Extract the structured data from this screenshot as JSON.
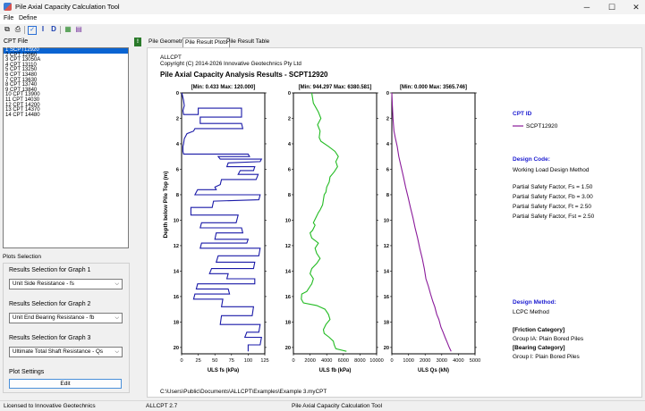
{
  "window": {
    "title": "Pile Axial Capacity Calculation Tool",
    "minimize": "─",
    "maximize": "☐",
    "close": "✕"
  },
  "menu": [
    "File",
    "Define"
  ],
  "toolbar_icons": [
    "copy-icon",
    "print-icon",
    "check-icon",
    "info-icon",
    "d-icon",
    "table-icon",
    "report-icon"
  ],
  "left": {
    "cpt_file_label": "CPT File",
    "cpt_list": [
      "1   SCPT12920",
      "2   CPT 12960",
      "3   CPT 13050A",
      "4   CPT 13110",
      "5   CPT 13250",
      "6   CPT 13480",
      "7   CPT 13630",
      "8   CPT 13740",
      "9   CPT 13840",
      "10  CPT 13900",
      "11  CPT 14030",
      "12  CPT 14200",
      "13  CPT 14370",
      "14  CPT 14480"
    ],
    "selected_index": 0,
    "plots_tab": "Plots Selection",
    "graph1_label": "Results Selection for Graph 1",
    "graph1_value": "Unit Side Resistance - fs",
    "graph2_label": "Results Selection for Graph 2",
    "graph2_value": "Unit End Bearing Resistance - fb",
    "graph3_label": "Results Selection for Graph 3",
    "graph3_value": "Ultimate Total Shaft Resistance - Qs",
    "settings_label": "Plot Settings",
    "edit_button": "Edit"
  },
  "tabs": [
    "Pile Geometry",
    "Pile Result Plots",
    "Pile Result Table"
  ],
  "active_tab": 1,
  "plot": {
    "header1": "ALLCPT",
    "header2": "Copyright (C) 2014-2026 Innovative Geotechnics Pty Ltd",
    "title": "Pile Axial Capacity Analysis Results - SCPT12920",
    "ylabel": "Depth below Pile Top (m)",
    "footer_path": "C:\\Users\\Public\\Documents\\ALLCPT\\Examples\\Example 3.myCPT",
    "legend_title": "CPT ID",
    "legend_entry": "SCPT12920",
    "design_code_title": "Design Code:",
    "design_code_value": "Working Load Design Method",
    "factors": [
      "Partial Safety Factor, Fs = 1.50",
      "Partial Safety Factor, Fb = 3.00",
      "Partial Safety Factor, Ft = 2.50",
      "Partial Safety Factor, Fst = 2.50"
    ],
    "design_method_title": "Design Method:",
    "design_method_value": "LCPC Method",
    "friction_cat_title": "[Friction Category]",
    "friction_cat_value": "Group IA: Plain Bored Piles",
    "bearing_cat_title": "[Bearing Category]",
    "bearing_cat_value": "Group I: Plain Bored Piles"
  },
  "chart_data": [
    {
      "type": "line",
      "title": "[Min: 0.433  Max: 120.000]",
      "xlabel": "ULS fs (kPa)",
      "xlim": [
        0,
        125
      ],
      "xticks": [
        0,
        25,
        50,
        75,
        100,
        125
      ],
      "ylim": [
        0,
        20.5
      ],
      "yticks": [
        0,
        2,
        4,
        6,
        8,
        10,
        12,
        14,
        16,
        18,
        20
      ],
      "color": "#1a1aa8",
      "x": [
        0.4,
        3,
        4,
        2,
        3,
        25,
        25,
        90,
        90,
        28,
        28,
        90,
        92,
        20,
        18,
        8,
        4,
        3,
        2,
        2,
        3,
        100,
        102,
        55,
        58,
        120,
        118,
        70,
        68,
        110,
        108,
        88,
        85,
        115,
        112,
        60,
        58,
        50,
        52,
        24,
        20,
        118,
        116,
        48,
        46,
        14,
        14,
        85,
        82,
        30,
        28,
        90,
        92,
        52,
        50,
        100,
        98,
        30,
        28,
        118,
        116,
        55,
        52,
        110,
        108,
        45,
        42,
        70,
        68,
        110,
        110,
        24,
        22,
        70,
        72,
        20,
        18,
        62,
        60,
        108,
        106,
        60,
        58,
        118,
        116,
        98,
        95,
        120,
        118,
        100,
        100
      ],
      "y": [
        0,
        0.6,
        1.0,
        1.4,
        1.7,
        1.7,
        1.2,
        1.2,
        1.9,
        1.9,
        2.4,
        2.4,
        2.8,
        2.8,
        3.0,
        3.2,
        3.6,
        4.0,
        4.2,
        4.6,
        4.8,
        4.8,
        5.0,
        5.0,
        5.2,
        5.2,
        5.4,
        5.5,
        5.8,
        5.8,
        6.1,
        6.1,
        6.4,
        6.4,
        6.8,
        6.8,
        7.2,
        7.4,
        7.6,
        7.6,
        8.0,
        8.0,
        8.4,
        8.5,
        9.0,
        9.0,
        9.6,
        9.6,
        10.2,
        10.2,
        10.6,
        10.6,
        11.0,
        11.0,
        11.5,
        11.5,
        11.8,
        11.8,
        12.2,
        12.2,
        12.8,
        12.8,
        13.3,
        13.3,
        13.8,
        13.8,
        14.2,
        14.2,
        14.6,
        14.6,
        15.0,
        15.0,
        15.4,
        15.4,
        15.8,
        15.8,
        16.2,
        16.2,
        16.8,
        16.8,
        17.5,
        17.5,
        18.2,
        18.2,
        18.8,
        18.8,
        19.2,
        19.2,
        19.8,
        19.8,
        20.3
      ]
    },
    {
      "type": "line",
      "title": "[Min: 944.297  Max: 6380.581]",
      "xlabel": "ULS fb (kPa)",
      "xlim": [
        0,
        10000
      ],
      "xticks": [
        0,
        2000,
        4000,
        6000,
        8000,
        10000
      ],
      "ylim": [
        0,
        20.5
      ],
      "yticks": [
        0,
        2,
        4,
        6,
        8,
        10,
        12,
        14,
        16,
        18,
        20
      ],
      "color": "#22bb22",
      "x": [
        2200,
        2400,
        3000,
        3300,
        2900,
        3200,
        3100,
        3300,
        4200,
        5000,
        5400,
        5100,
        5300,
        4900,
        4400,
        4300,
        4000,
        3900,
        3700,
        3600,
        3500,
        3200,
        3000,
        2700,
        2400,
        2600,
        2300,
        2000,
        2200,
        2600,
        3000,
        2600,
        2800,
        3200,
        2800,
        2200,
        2000,
        2400,
        2200,
        2000,
        1800,
        1600,
        1000,
        950,
        1200,
        2800,
        3800,
        4200,
        4400,
        3900,
        3600,
        3700,
        4300,
        4800,
        4900,
        5100,
        6380
      ],
      "y": [
        0,
        0.8,
        1.5,
        2.0,
        2.5,
        3.0,
        3.5,
        3.8,
        4.2,
        4.6,
        5.0,
        5.4,
        5.8,
        6.2,
        6.6,
        7.0,
        7.4,
        7.8,
        8.0,
        8.4,
        8.8,
        9.2,
        9.4,
        9.8,
        10.2,
        10.4,
        10.8,
        11.0,
        11.4,
        11.6,
        11.8,
        12.2,
        12.6,
        13.0,
        13.4,
        13.8,
        14.2,
        14.6,
        15.0,
        15.2,
        15.4,
        15.6,
        15.8,
        16.2,
        16.5,
        16.7,
        17.0,
        17.4,
        17.8,
        18.2,
        18.6,
        18.9,
        19.2,
        19.5,
        19.8,
        20.1,
        20.3
      ]
    },
    {
      "type": "line",
      "title": "[Min: 0.000  Max: 3565.746]",
      "xlabel": "ULS Qs (kN)",
      "xlim": [
        0,
        5000
      ],
      "xticks": [
        0,
        1000,
        2000,
        3000,
        4000,
        5000
      ],
      "ylim": [
        0,
        20.5
      ],
      "yticks": [
        0,
        2,
        4,
        6,
        8,
        10,
        12,
        14,
        16,
        18,
        20
      ],
      "color": "#8a1a9a",
      "x": [
        0,
        30,
        70,
        130,
        220,
        320,
        420,
        560,
        700,
        830,
        980,
        1120,
        1270,
        1400,
        1550,
        1680,
        1830,
        1950,
        2050,
        2200,
        2330,
        2470,
        2580,
        2700,
        2830,
        2950,
        3080,
        3200,
        3330,
        3450,
        3566
      ],
      "y": [
        0,
        1.0,
        2.0,
        3.0,
        3.6,
        4.2,
        5.0,
        5.8,
        6.6,
        7.4,
        8.2,
        9.0,
        9.8,
        10.6,
        11.4,
        12.2,
        13.0,
        13.8,
        14.6,
        15.2,
        15.8,
        16.4,
        16.8,
        17.4,
        17.8,
        18.4,
        18.8,
        19.2,
        19.6,
        20.0,
        20.3
      ]
    }
  ],
  "status": {
    "license": "Licensed to Innovative Geotechnics",
    "version": "ALLCPT 2.7",
    "app": "Pile Axial Capacity Calculation Tool"
  }
}
